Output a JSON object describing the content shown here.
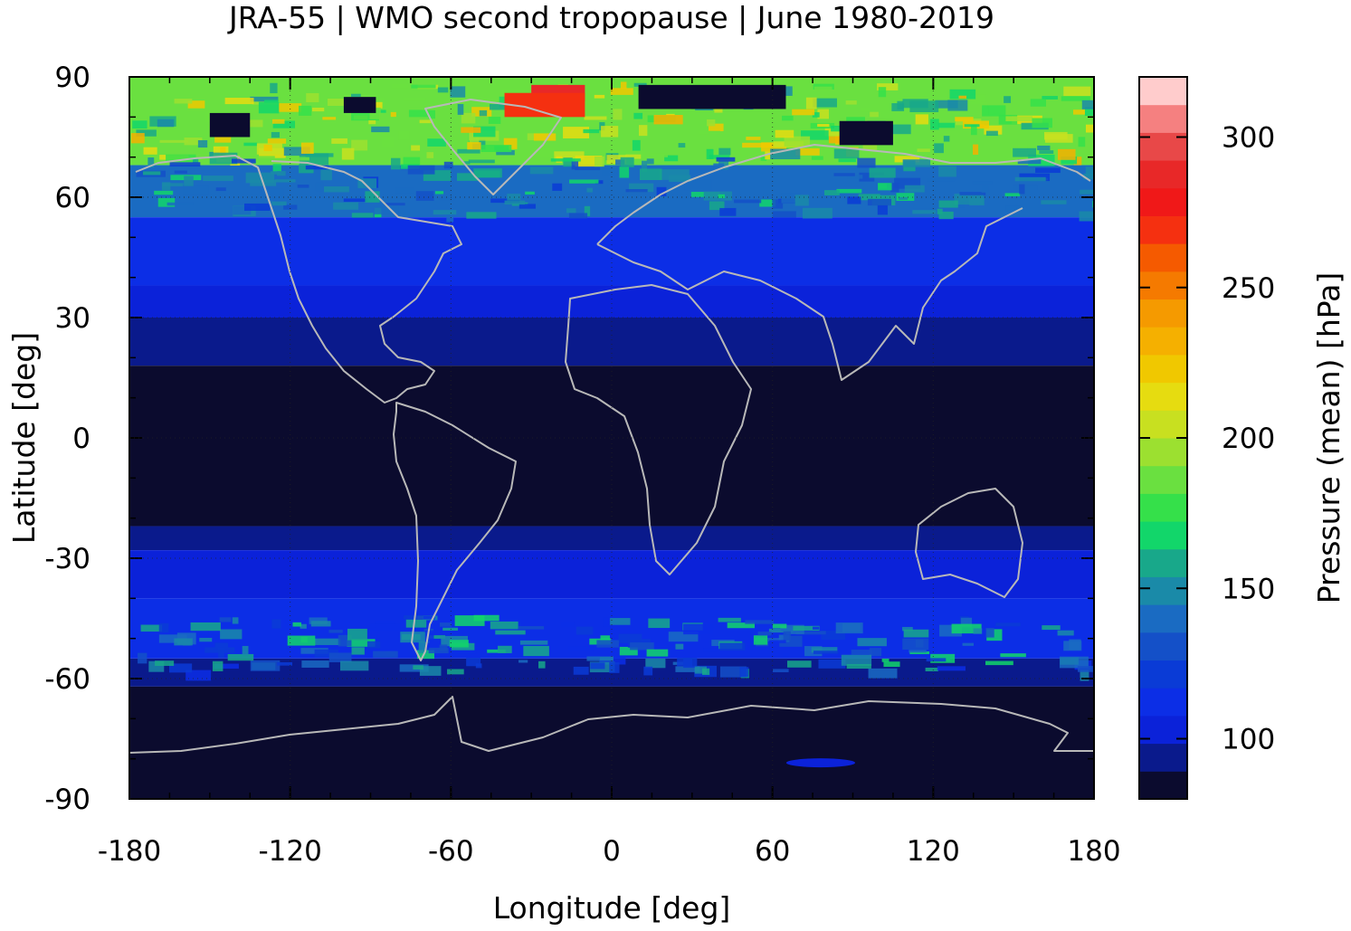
{
  "chart_data": {
    "type": "heatmap",
    "title": "JRA-55 | WMO second tropopause | June 1980-2019",
    "xlabel": "Longitude [deg]",
    "ylabel": "Latitude [deg]",
    "colorbar_label": "Pressure (mean) [hPa]",
    "xlim": [
      -180,
      180
    ],
    "ylim": [
      -90,
      90
    ],
    "xticks": [
      "-180",
      "-120",
      "-60",
      "0",
      "60",
      "120",
      "180"
    ],
    "yticks": [
      "90",
      "60",
      "30",
      "0",
      "-30",
      "-60",
      "-90"
    ],
    "colorbar_ticks": [
      "300",
      "250",
      "200",
      "150",
      "100"
    ],
    "colorbar_range": [
      80,
      320
    ],
    "colorbar_colors": [
      "#0b0b2e",
      "#0a1a8c",
      "#0b22d9",
      "#0c2ee6",
      "#0a3bd6",
      "#1450c8",
      "#1a6bc2",
      "#1a8aa8",
      "#18a88a",
      "#12d66a",
      "#35e04a",
      "#6ae040",
      "#9ce030",
      "#c8e020",
      "#e6dc10",
      "#f0c800",
      "#f5b000",
      "#f59a00",
      "#f57a00",
      "#f55a00",
      "#f53010",
      "#f01818",
      "#e82828",
      "#e84848",
      "#f58080",
      "#ffcccc"
    ],
    "latitude_bands": [
      {
        "lat_from": 90,
        "lat_to": 68,
        "pressure": 190
      },
      {
        "lat_from": 68,
        "lat_to": 55,
        "pressure": 140
      },
      {
        "lat_from": 55,
        "lat_to": 38,
        "pressure": 110
      },
      {
        "lat_from": 38,
        "lat_to": 30,
        "pressure": 100
      },
      {
        "lat_from": 30,
        "lat_to": 18,
        "pressure": 95
      },
      {
        "lat_from": 18,
        "lat_to": -22,
        "pressure": 85
      },
      {
        "lat_from": -22,
        "lat_to": -28,
        "pressure": 95
      },
      {
        "lat_from": -28,
        "lat_to": -40,
        "pressure": 105
      },
      {
        "lat_from": -40,
        "lat_to": -55,
        "pressure": 115
      },
      {
        "lat_from": -55,
        "lat_to": -62,
        "pressure": 95
      },
      {
        "lat_from": -62,
        "lat_to": -90,
        "pressure": 85
      }
    ]
  }
}
